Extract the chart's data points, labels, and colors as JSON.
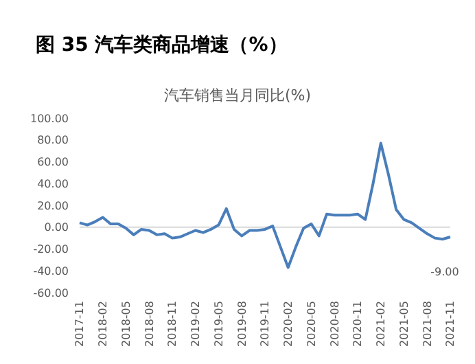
{
  "chart_data": {
    "type": "line",
    "title": "图 35 汽车类商品增速（%）",
    "subtitle": "汽车销售当月同比(%)",
    "categories": [
      "2017-11",
      null,
      null,
      "2018-02",
      null,
      null,
      "2018-05",
      null,
      null,
      "2018-08",
      null,
      null,
      "2018-11",
      null,
      null,
      "2019-02",
      null,
      null,
      "2019-05",
      null,
      null,
      "2019-08",
      null,
      null,
      "2019-11",
      null,
      null,
      "2020-02",
      null,
      null,
      "2020-05",
      null,
      null,
      "2020-08",
      null,
      null,
      "2020-11",
      null,
      null,
      "2021-02",
      null,
      null,
      "2021-05",
      null,
      null,
      "2021-08",
      null,
      null,
      "2021-11"
    ],
    "series": [
      {
        "color": "#4a7ebb",
        "values": [
          4,
          2,
          5,
          9,
          3,
          3,
          -1,
          -7,
          -2,
          -3,
          -7,
          -6,
          -10,
          -9,
          -6,
          -3,
          -5,
          -2,
          2,
          17,
          -2,
          -8,
          -3,
          -3,
          -2,
          1,
          -18,
          -37,
          -18,
          -1,
          3,
          -8,
          12,
          11,
          11,
          11,
          12,
          7,
          40,
          77,
          48,
          16,
          7,
          4,
          -1,
          -6,
          -10,
          -11,
          -9
        ],
        "value_labels": [
          null,
          null,
          null,
          null,
          null,
          null,
          null,
          null,
          null,
          null,
          null,
          null,
          null,
          null,
          null,
          null,
          null,
          null,
          null,
          null,
          null,
          null,
          null,
          null,
          null,
          null,
          null,
          null,
          null,
          null,
          null,
          null,
          null,
          null,
          null,
          null,
          null,
          null,
          null,
          null,
          null,
          null,
          null,
          null,
          null,
          null,
          null,
          null,
          "-9.00"
        ]
      }
    ],
    "ylim": [
      -60,
      100
    ],
    "yticks": [
      {
        "value": -60,
        "label": "-60.00"
      },
      {
        "value": -40,
        "label": "-40.00"
      },
      {
        "value": -20,
        "label": "-20.00"
      },
      {
        "value": 0,
        "label": "0.00"
      },
      {
        "value": 20,
        "label": "20.00"
      },
      {
        "value": 40,
        "label": "40.00"
      },
      {
        "value": 60,
        "label": "60.00"
      },
      {
        "value": 80,
        "label": "80.00"
      },
      {
        "value": 100,
        "label": "100.00"
      }
    ],
    "ref_lines": [
      {
        "axis": "y",
        "value": 0,
        "color": "#d9d9d9"
      }
    ],
    "marker": "none",
    "line_style": "solid"
  }
}
